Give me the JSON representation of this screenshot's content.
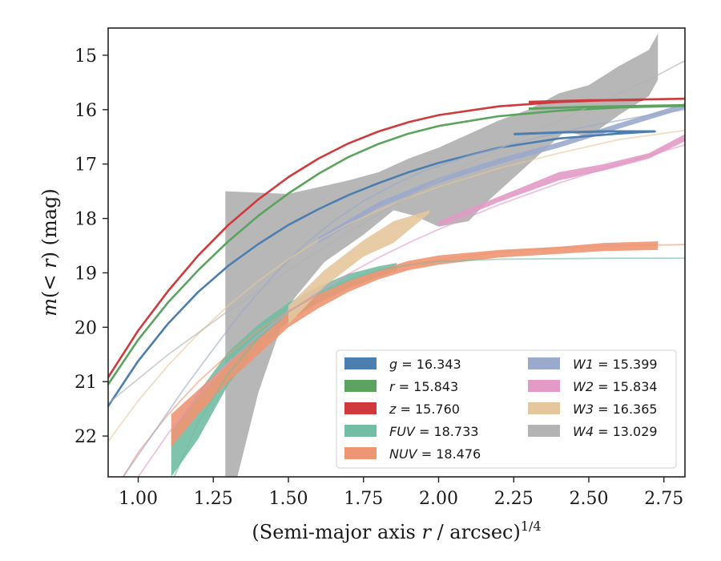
{
  "chart_data": {
    "type": "line",
    "xlabel": "(Semi-major axis r / arcsec)^1/4",
    "ylabel": "m(< r) (mag)",
    "xlim": [
      0.9,
      2.82
    ],
    "ylim": [
      22.75,
      14.5
    ],
    "y_inverted": true,
    "x_ticks": [
      1.0,
      1.25,
      1.5,
      1.75,
      2.0,
      2.25,
      2.5,
      2.75
    ],
    "x_tick_labels": [
      "1.00",
      "1.25",
      "1.50",
      "1.75",
      "2.00",
      "2.25",
      "2.50",
      "2.75"
    ],
    "y_ticks": [
      15,
      16,
      17,
      18,
      19,
      20,
      21,
      22
    ],
    "y_tick_labels": [
      "15",
      "16",
      "17",
      "18",
      "19",
      "20",
      "21",
      "22"
    ],
    "grid": false,
    "legend_position": "bottom-right",
    "legend": [
      {
        "label": "g = 16.343",
        "color": "#4c7eb0"
      },
      {
        "label": "r = 15.843",
        "color": "#5ba35e"
      },
      {
        "label": "z = 15.760",
        "color": "#d03a3d"
      },
      {
        "label": "FUV = 18.733",
        "color": "#72bda4"
      },
      {
        "label": "NUV = 18.476",
        "color": "#ee9673"
      },
      {
        "label": "W1 = 15.399",
        "color": "#9ba9cc"
      },
      {
        "label": "W2 = 15.834",
        "color": "#e39ac7"
      },
      {
        "label": "W3 = 16.365",
        "color": "#e6c79c"
      },
      {
        "label": "W4 = 13.029",
        "color": "#b3b3b3"
      }
    ],
    "series": [
      {
        "name": "g = 16.343",
        "color": "#4c7eb0",
        "model_x": [
          0.9,
          1.0,
          1.1,
          1.2,
          1.3,
          1.4,
          1.5,
          1.6,
          1.7,
          1.8,
          1.9,
          2.0,
          2.2,
          2.4,
          2.6,
          2.72
        ],
        "model_y": [
          21.45,
          20.62,
          19.93,
          19.35,
          18.87,
          18.47,
          18.12,
          17.83,
          17.57,
          17.35,
          17.15,
          16.98,
          16.7,
          16.53,
          16.44,
          16.4
        ],
        "data_x": [
          2.25,
          2.4,
          2.55,
          2.72
        ],
        "data_y": [
          16.45,
          16.42,
          16.4,
          16.4
        ]
      },
      {
        "name": "r = 15.843",
        "color": "#5ba35e",
        "model_x": [
          0.9,
          1.0,
          1.1,
          1.2,
          1.3,
          1.4,
          1.5,
          1.6,
          1.7,
          1.8,
          1.9,
          2.0,
          2.2,
          2.4,
          2.6,
          2.82
        ],
        "model_y": [
          21.05,
          20.23,
          19.54,
          18.95,
          18.42,
          17.95,
          17.54,
          17.18,
          16.87,
          16.63,
          16.44,
          16.3,
          16.12,
          16.02,
          15.96,
          15.93
        ],
        "data_x": [
          2.3,
          2.5,
          2.7,
          2.82
        ],
        "data_y": [
          15.98,
          15.95,
          15.93,
          15.92
        ]
      },
      {
        "name": "z = 15.760",
        "color": "#d03a3d",
        "model_x": [
          0.9,
          1.0,
          1.1,
          1.2,
          1.3,
          1.4,
          1.5,
          1.6,
          1.7,
          1.8,
          1.9,
          2.0,
          2.2,
          2.4,
          2.6,
          2.82
        ],
        "model_y": [
          20.92,
          20.06,
          19.33,
          18.68,
          18.12,
          17.65,
          17.24,
          16.9,
          16.62,
          16.4,
          16.23,
          16.1,
          15.94,
          15.86,
          15.82,
          15.8
        ],
        "data_x": [
          2.3,
          2.5,
          2.68
        ],
        "data_y": [
          15.86,
          15.83,
          15.82
        ]
      },
      {
        "name": "FUV = 18.733",
        "color": "#72bda4",
        "model_x": [
          1.12,
          1.2,
          1.3,
          1.4,
          1.5,
          1.6,
          1.7,
          1.8,
          1.9,
          2.0,
          2.2,
          2.4,
          2.6,
          2.82
        ],
        "model_y": [
          22.75,
          21.75,
          20.85,
          20.2,
          19.72,
          19.38,
          19.13,
          18.95,
          18.85,
          18.79,
          18.75,
          18.74,
          18.73,
          18.73
        ],
        "band_x": [
          1.11,
          1.2,
          1.3,
          1.4,
          1.5,
          1.6,
          1.7,
          1.8,
          1.86
        ],
        "band_upper": [
          21.9,
          21.2,
          20.45,
          19.95,
          19.55,
          19.25,
          19.02,
          18.88,
          18.82
        ],
        "band_lower": [
          22.75,
          22.05,
          21.05,
          20.35,
          19.9,
          19.55,
          19.28,
          19.08,
          18.96
        ]
      },
      {
        "name": "NUV = 18.476",
        "color": "#ee9673",
        "model_x": [
          0.95,
          1.0,
          1.1,
          1.2,
          1.3,
          1.4,
          1.5,
          1.6,
          1.7,
          1.8,
          1.9,
          2.0,
          2.2,
          2.4,
          2.6,
          2.82
        ],
        "model_y": [
          22.75,
          22.3,
          21.6,
          21.0,
          20.5,
          20.05,
          19.7,
          19.4,
          19.18,
          19.0,
          18.86,
          18.76,
          18.62,
          18.54,
          18.5,
          18.48
        ],
        "band_x": [
          1.11,
          1.2,
          1.3,
          1.4,
          1.5,
          1.6,
          1.7,
          1.8,
          1.9,
          2.0,
          2.2,
          2.4,
          2.55,
          2.73
        ],
        "band_upper": [
          21.6,
          21.15,
          20.65,
          20.2,
          19.75,
          19.4,
          19.15,
          18.95,
          18.78,
          18.68,
          18.58,
          18.52,
          18.45,
          18.42
        ],
        "band_lower": [
          22.2,
          21.6,
          21.0,
          20.5,
          20.0,
          19.65,
          19.35,
          19.12,
          18.95,
          18.85,
          18.72,
          18.65,
          18.6,
          18.58
        ]
      },
      {
        "name": "W1 = 15.399",
        "color": "#9ba9cc",
        "model_x": [
          0.95,
          1.05,
          1.15,
          1.25,
          1.35,
          1.45,
          1.55,
          1.65,
          1.75,
          1.85,
          1.95,
          2.1,
          2.3,
          2.5,
          2.7,
          2.82
        ],
        "model_y": [
          22.75,
          21.95,
          21.15,
          20.4,
          19.68,
          19.05,
          18.5,
          18.05,
          17.68,
          17.38,
          17.13,
          16.85,
          16.55,
          16.3,
          16.1,
          16.0
        ],
        "band_x": [
          1.6,
          1.8,
          2.0,
          2.2,
          2.4,
          2.6,
          2.82
        ],
        "band_upper": [
          18.35,
          17.7,
          17.25,
          16.9,
          16.6,
          16.25,
          15.88
        ],
        "band_lower": [
          18.45,
          17.8,
          17.35,
          17.0,
          16.7,
          16.35,
          15.98
        ]
      },
      {
        "name": "W2 = 15.834",
        "color": "#e39ac7",
        "model_x": [
          1.0,
          1.1,
          1.2,
          1.3,
          1.4,
          1.5,
          1.6,
          1.7,
          1.8,
          1.9,
          2.0,
          2.2,
          2.4,
          2.6,
          2.82
        ],
        "model_y": [
          22.75,
          21.95,
          21.25,
          20.65,
          20.15,
          19.72,
          19.35,
          19.02,
          18.72,
          18.45,
          18.2,
          17.75,
          17.35,
          17.0,
          16.65
        ],
        "band_x": [
          2.0,
          2.2,
          2.4,
          2.55,
          2.7,
          2.82
        ],
        "band_upper": [
          18.05,
          17.6,
          17.15,
          17.0,
          16.8,
          16.45
        ],
        "band_lower": [
          18.15,
          17.7,
          17.3,
          17.12,
          16.9,
          16.58
        ]
      },
      {
        "name": "W3 = 16.365",
        "color": "#e6c79c",
        "model_x": [
          0.9,
          1.0,
          1.1,
          1.2,
          1.3,
          1.4,
          1.5,
          1.6,
          1.7,
          1.8,
          1.9,
          2.0,
          2.2,
          2.4,
          2.6,
          2.82
        ],
        "model_y": [
          22.1,
          21.35,
          20.7,
          20.12,
          19.6,
          19.15,
          18.75,
          18.4,
          18.1,
          17.85,
          17.62,
          17.42,
          17.08,
          16.8,
          16.55,
          16.38
        ],
        "band_x": [
          1.5,
          1.62,
          1.75,
          1.85,
          1.97
        ],
        "band_upper": [
          19.6,
          18.95,
          18.4,
          18.05,
          17.85
        ],
        "band_lower": [
          19.95,
          19.25,
          18.7,
          18.45,
          17.9
        ]
      },
      {
        "name": "W4 = 13.029",
        "color": "#b3b3b3",
        "model_x": [
          0.9,
          1.1,
          1.3,
          1.5,
          1.7,
          1.9,
          2.1,
          2.3,
          2.5,
          2.7,
          2.82
        ],
        "model_y": [
          21.4,
          20.5,
          19.7,
          18.95,
          18.25,
          17.6,
          17.0,
          16.45,
          15.95,
          15.45,
          15.1
        ],
        "band_upper_x": [
          1.29,
          1.5,
          1.7,
          1.8,
          1.9,
          2.0,
          2.1,
          2.2,
          2.3,
          2.4,
          2.5,
          2.6,
          2.7,
          2.73
        ],
        "band_upper_y": [
          17.5,
          17.55,
          17.3,
          17.15,
          16.9,
          16.7,
          16.45,
          16.2,
          16.0,
          15.7,
          15.55,
          15.2,
          14.9,
          14.6
        ],
        "band_lower_x": [
          2.73,
          2.7,
          2.6,
          2.5,
          2.42,
          2.35,
          2.25,
          2.16,
          2.1,
          2.0,
          1.92,
          1.85,
          1.75,
          1.62,
          1.5,
          1.4,
          1.33,
          1.29
        ],
        "band_lower_y": [
          15.45,
          15.75,
          16.1,
          16.5,
          16.4,
          16.75,
          17.25,
          17.7,
          18.05,
          18.15,
          17.95,
          17.85,
          18.3,
          18.8,
          19.6,
          21.2,
          22.75,
          22.75
        ]
      }
    ]
  }
}
